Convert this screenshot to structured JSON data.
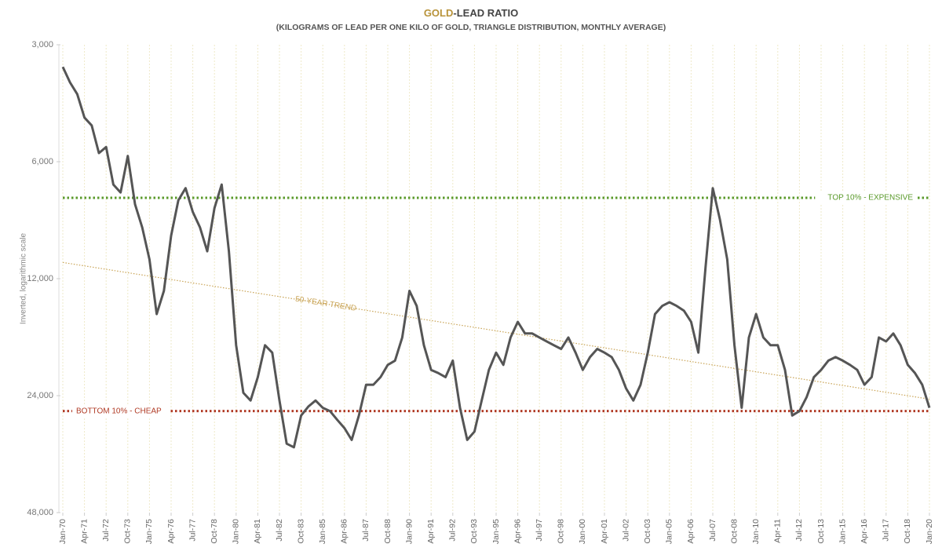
{
  "chart_data": {
    "type": "line",
    "title_parts": [
      "GOLD",
      "-LEAD RATIO"
    ],
    "title_colors": [
      "#b8933a",
      "#444444"
    ],
    "subtitle": "(KILOGRAMS OF LEAD PER ONE KILO OF GOLD, TRIANGLE DISTRIBUTION, MONTHLY AVERAGE)",
    "ylabel": "Inverted, logarithmic scale",
    "yscale": "log",
    "yinverted": true,
    "ylim": [
      3000,
      48000
    ],
    "yticks": [
      {
        "value": 3000,
        "label": "3,000"
      },
      {
        "value": 6000,
        "label": "6,000"
      },
      {
        "value": 12000,
        "label": "12,000"
      },
      {
        "value": 24000,
        "label": "24,000"
      },
      {
        "value": 48000,
        "label": "48,000"
      }
    ],
    "xlim": [
      "Jan-70",
      "Jan-20"
    ],
    "xticks": [
      "Jan-70",
      "Apr-71",
      "Jul-72",
      "Oct-73",
      "Jan-75",
      "Apr-76",
      "Jul-77",
      "Oct-78",
      "Jan-80",
      "Apr-81",
      "Jul-82",
      "Oct-83",
      "Jan-85",
      "Apr-86",
      "Jul-87",
      "Oct-88",
      "Jan-90",
      "Apr-91",
      "Jul-92",
      "Oct-93",
      "Jan-95",
      "Apr-96",
      "Jul-97",
      "Oct-98",
      "Jan-00",
      "Apr-01",
      "Jul-02",
      "Oct-03",
      "Jan-05",
      "Apr-06",
      "Jul-07",
      "Oct-08",
      "Jan-10",
      "Apr-11",
      "Jul-12",
      "Oct-13",
      "Jan-15",
      "Apr-16",
      "Jul-17",
      "Oct-18",
      "Jan-20"
    ],
    "grid": true,
    "x": [
      "Jan-70",
      "Jun-70",
      "Nov-70",
      "Apr-71",
      "Sep-71",
      "Feb-72",
      "Jul-72",
      "Dec-72",
      "May-73",
      "Oct-73",
      "Mar-74",
      "Aug-74",
      "Jan-75",
      "Jun-75",
      "Nov-75",
      "Apr-76",
      "Sep-76",
      "Feb-77",
      "Jul-77",
      "Dec-77",
      "May-78",
      "Oct-78",
      "Mar-79",
      "Aug-79",
      "Jan-80",
      "Jun-80",
      "Nov-80",
      "Apr-81",
      "Sep-81",
      "Feb-82",
      "Jul-82",
      "Dec-82",
      "May-83",
      "Oct-83",
      "Mar-84",
      "Aug-84",
      "Jan-85",
      "Jun-85",
      "Nov-85",
      "Apr-86",
      "Sep-86",
      "Feb-87",
      "Jul-87",
      "Dec-87",
      "May-88",
      "Oct-88",
      "Mar-89",
      "Aug-89",
      "Jan-90",
      "Jun-90",
      "Nov-90",
      "Apr-91",
      "Sep-91",
      "Feb-92",
      "Jul-92",
      "Dec-92",
      "May-93",
      "Oct-93",
      "Mar-94",
      "Aug-94",
      "Jan-95",
      "Jun-95",
      "Nov-95",
      "Apr-96",
      "Sep-96",
      "Feb-97",
      "Jul-97",
      "Dec-97",
      "May-98",
      "Oct-98",
      "Mar-99",
      "Aug-99",
      "Jan-00",
      "Jun-00",
      "Nov-00",
      "Apr-01",
      "Sep-01",
      "Feb-02",
      "Jul-02",
      "Dec-02",
      "May-03",
      "Oct-03",
      "Mar-04",
      "Aug-04",
      "Jan-05",
      "Jun-05",
      "Nov-05",
      "Apr-06",
      "Sep-06",
      "Feb-07",
      "Jul-07",
      "Dec-07",
      "May-08",
      "Oct-08",
      "Mar-09",
      "Aug-09",
      "Jan-10",
      "Jun-10",
      "Nov-10",
      "Apr-11",
      "Sep-11",
      "Feb-12",
      "Jul-12",
      "Dec-12",
      "May-13",
      "Oct-13",
      "Mar-14",
      "Aug-14",
      "Jan-15",
      "Jun-15",
      "Nov-15",
      "Apr-16",
      "Sep-16",
      "Feb-17",
      "Jul-17",
      "Dec-17",
      "May-18",
      "Oct-18",
      "Mar-19",
      "Aug-19",
      "Jan-20"
    ],
    "series": [
      {
        "color": "#555555",
        "values": [
          3420,
          3750,
          4020,
          4620,
          4840,
          5700,
          5500,
          6870,
          7200,
          5800,
          7720,
          8860,
          10700,
          14800,
          12900,
          9300,
          7540,
          7020,
          8080,
          8860,
          10200,
          7900,
          6870,
          10200,
          17800,
          23600,
          24700,
          21500,
          17800,
          18600,
          24700,
          31900,
          32600,
          27000,
          25600,
          24700,
          25800,
          26300,
          27700,
          29100,
          31200,
          27000,
          22500,
          22500,
          21500,
          20000,
          19500,
          17000,
          12900,
          14100,
          17800,
          20600,
          21000,
          21500,
          19500,
          25800,
          31200,
          29700,
          24700,
          20600,
          18600,
          20000,
          17000,
          15500,
          16600,
          16600,
          17000,
          17400,
          17800,
          18200,
          17000,
          18600,
          20600,
          19100,
          18200,
          18600,
          19100,
          20600,
          23000,
          24700,
          22500,
          18600,
          14800,
          14100,
          13800,
          14100,
          14500,
          15500,
          18600,
          11200,
          7020,
          8470,
          10700,
          17800,
          25800,
          17000,
          14800,
          17000,
          17800,
          17800,
          20600,
          27000,
          26300,
          24200,
          21500,
          20600,
          19500,
          19100,
          19500,
          20000,
          20600,
          22500,
          21500,
          17000,
          17400,
          16600,
          17800,
          20000,
          21000,
          22500,
          25800
        ]
      }
    ],
    "reference_lines": [
      {
        "label": "TOP 10% - EXPENSIVE",
        "value": 7430,
        "color": "#5a9a2a"
      },
      {
        "label": "BOTTOM 10% - CHEAP",
        "value": 26300,
        "color": "#b03a24"
      }
    ],
    "trend": {
      "label": "50-YEAR TREND",
      "x": [
        "Jan-70",
        "Jan-20"
      ],
      "values": [
        10900,
        24500
      ],
      "color": "#c9a456"
    }
  }
}
